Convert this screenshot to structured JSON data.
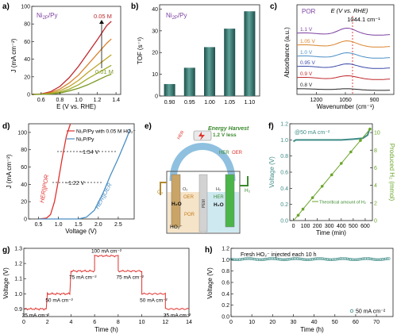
{
  "panels": {
    "a": {
      "label": "a)",
      "legend": "Ni",
      "legend_sub": "2P",
      "legend_suffix": "/Py",
      "ylabel": "J (mA cm⁻²)",
      "xlabel": "E (V vs. RHE)",
      "conc_top": "0.05 M",
      "conc_bottom": "0.01 M",
      "yticks": [
        "0",
        "20",
        "40",
        "60",
        "80",
        "100"
      ],
      "xticks": [
        "0.6",
        "0.8",
        "1.0",
        "1.2",
        "1.4"
      ]
    },
    "b": {
      "label": "b)",
      "legend": "Ni",
      "legend_sub": "2P",
      "legend_suffix": "/Py",
      "ylabel": "TOF (s⁻¹)",
      "yticks": [
        "0",
        "10",
        "20",
        "30",
        "40"
      ]
    },
    "c": {
      "label": "c)",
      "title": "POR",
      "ylabel": "Absorbance (a.u.)",
      "xlabel": "Wavenumber (cm⁻¹)",
      "header": "E (V vs. RHE)",
      "peak": "1044.1 cm⁻¹",
      "xticks": [
        "1200",
        "1050",
        "900"
      ]
    },
    "d": {
      "label": "d)",
      "ylabel": "J (mA cm⁻²)",
      "xlabel": "Voltage (V)",
      "legend1": "Ni₂P/Py with 0.05 M HO₂⁻",
      "legend2": "Ni₂P/Py",
      "gap_top": "~1.54 V",
      "gap_bottom": "~1.22 V",
      "red_label": "HER||POR",
      "blue_label": "HER||OER",
      "yticks": [
        "0",
        "20",
        "40",
        "60",
        "80",
        "100"
      ],
      "xticks": [
        "0.5",
        "1.0",
        "1.5",
        "2.0",
        "2.5"
      ]
    },
    "e": {
      "label": "e)",
      "energy": "Energy Harvest",
      "v_save": "1.2 V less",
      "her_por": "HER",
      "her_oer": "HER",
      "oer_label": "OER",
      "o2": "O₂",
      "h2": "H₂",
      "h2o_left": "H₂O",
      "h2o_right": "H₂O",
      "oer": "OER",
      "por": "POR",
      "ho2": "HO₂⁻",
      "pem": "PEM",
      "her": "HER",
      "o2_small": "O₂",
      "h2_small": "H₂"
    },
    "f": {
      "label": "f)",
      "annotation": "@50 mA cm⁻²",
      "ylabel_left": "Voltage (V)",
      "ylabel_right": "Produced H₂ (mmol)",
      "xlabel": "Time (min)",
      "legend": "Theoritical amount of H₂",
      "yticks_left": [
        "0.0",
        "0.2",
        "0.4",
        "0.6",
        "0.8",
        "1.0",
        "1.2"
      ],
      "yticks_right": [
        "0",
        "2",
        "4",
        "6",
        "8",
        "10"
      ],
      "xticks": [
        "0",
        "100",
        "200",
        "300",
        "400",
        "500",
        "600"
      ]
    },
    "g": {
      "label": "g)",
      "ylabel": "Voltage (V)",
      "xlabel": "Time (h)",
      "yticks": [
        "0.9",
        "1.0",
        "1.1",
        "1.2",
        "1.3"
      ],
      "xticks": [
        "0",
        "2",
        "4",
        "6",
        "8",
        "10",
        "12",
        "14"
      ]
    },
    "h": {
      "label": "h)",
      "annotation": "Fresh HO₂⁻ injected each 10 h",
      "ylabel": "Voltage (V)",
      "xlabel": "Time (h)",
      "legend": "50 mA cm⁻²",
      "yticks": [
        "0.0",
        "0.2",
        "0.4",
        "0.6",
        "0.8",
        "1.0",
        "1.2"
      ],
      "xticks": [
        "0",
        "10",
        "20",
        "30",
        "40",
        "50",
        "60",
        "70"
      ]
    }
  },
  "chart_data": [
    {
      "panel": "a",
      "type": "line",
      "title": "",
      "xlabel": "E (V vs. RHE)",
      "ylabel": "J (mA cm⁻²)",
      "xlim": [
        0.5,
        1.45
      ],
      "ylim": [
        0,
        100
      ],
      "series": [
        {
          "color": "#c0282d",
          "x": [
            0.5,
            0.6,
            0.7,
            0.8,
            0.9,
            1.0,
            1.1,
            1.2,
            1.3,
            1.35
          ],
          "y": [
            0,
            0.5,
            3,
            9,
            19,
            32,
            47,
            62,
            78,
            83
          ]
        },
        {
          "color": "#d9832b",
          "x": [
            0.5,
            0.6,
            0.7,
            0.8,
            0.9,
            1.0,
            1.1,
            1.2,
            1.3,
            1.35
          ],
          "y": [
            0,
            0.3,
            2,
            6,
            13,
            22,
            34,
            46,
            58,
            63
          ]
        },
        {
          "color": "#bfa52a",
          "x": [
            0.5,
            0.6,
            0.7,
            0.8,
            0.9,
            1.0,
            1.1,
            1.2,
            1.3,
            1.35
          ],
          "y": [
            0,
            0.2,
            1,
            4,
            9,
            16,
            25,
            33,
            41,
            45
          ]
        },
        {
          "color": "#a0ad2c",
          "x": [
            0.5,
            0.6,
            0.7,
            0.8,
            0.9,
            1.0,
            1.1,
            1.2,
            1.3,
            1.35
          ],
          "y": [
            0,
            0.1,
            0.6,
            2.5,
            6,
            11,
            18,
            24,
            30,
            33
          ]
        },
        {
          "color": "#7c9a27",
          "x": [
            0.5,
            0.6,
            0.7,
            0.8,
            0.9,
            1.0,
            1.1,
            1.2,
            1.3,
            1.35
          ],
          "y": [
            0,
            0.1,
            0.4,
            1.5,
            4,
            7,
            11,
            16,
            21,
            23
          ]
        }
      ]
    },
    {
      "panel": "b",
      "type": "bar",
      "categories": [
        "0.90",
        "0.95",
        "1.00",
        "1.05",
        "1.10"
      ],
      "values": [
        5.5,
        13,
        22.5,
        31,
        39
      ],
      "ylim": [
        0,
        42
      ],
      "ylabel": "TOF (s⁻¹)"
    },
    {
      "panel": "c",
      "type": "line",
      "xlim": [
        1300,
        800
      ],
      "series": [
        {
          "name": "1.1 V",
          "color": "#7b3fa0"
        },
        {
          "name": "1.05 V",
          "color": "#d9832b"
        },
        {
          "name": "1.0 V",
          "color": "#4b8fc4"
        },
        {
          "name": "0.95 V",
          "color": "#3a49a8"
        },
        {
          "name": "0.9 V",
          "color": "#c0282d"
        },
        {
          "name": "0.8 V",
          "color": "#222222"
        }
      ]
    },
    {
      "panel": "d",
      "type": "line",
      "xlim": [
        0.25,
        2.9
      ],
      "ylim": [
        0,
        110
      ],
      "series": [
        {
          "color": "#e0322e",
          "x": [
            0.5,
            0.7,
            0.8,
            0.9,
            1.0,
            1.1,
            1.2,
            1.3
          ],
          "y": [
            0,
            1,
            5,
            20,
            45,
            72,
            96,
            110
          ]
        },
        {
          "color": "#4b8fc4",
          "x": [
            0.5,
            1.5,
            1.7,
            1.9,
            2.1,
            2.3,
            2.5,
            2.7,
            2.8
          ],
          "y": [
            0,
            0,
            2,
            10,
            28,
            50,
            70,
            92,
            104
          ]
        }
      ]
    },
    {
      "panel": "f",
      "type": "line",
      "xlim": [
        -30,
        660
      ],
      "ylim": [
        0,
        1.2
      ],
      "y2lim": [
        0,
        11
      ],
      "series": [
        {
          "color": "#3e8c86",
          "axis": "left",
          "x": [
            0,
            20,
            100,
            200,
            300,
            400,
            500,
            580,
            620,
            640
          ],
          "y": [
            0.98,
            1.0,
            1.0,
            1.0,
            1.0,
            1.0,
            1.01,
            1.02,
            1.06,
            1.15
          ]
        },
        {
          "color": "#6aa52a",
          "axis": "right",
          "x": [
            0,
            40,
            80,
            160,
            240,
            320,
            400,
            480,
            560,
            640
          ],
          "y": [
            0,
            0.6,
            1.3,
            2.6,
            3.9,
            5.2,
            6.5,
            7.8,
            9.1,
            10.4
          ]
        }
      ]
    },
    {
      "panel": "g",
      "type": "line",
      "xlim": [
        0,
        14
      ],
      "ylim": [
        0.85,
        1.3
      ],
      "steps": [
        {
          "x0": 0,
          "x1": 2,
          "y": 0.9,
          "label": "25 mA cm⁻²"
        },
        {
          "x0": 2,
          "x1": 4,
          "y": 1.0,
          "label": "50 mA cm⁻²"
        },
        {
          "x0": 4,
          "x1": 6,
          "y": 1.15,
          "label": "75 mA cm⁻²"
        },
        {
          "x0": 6,
          "x1": 8,
          "y": 1.25,
          "label": "100 mA cm⁻²"
        },
        {
          "x0": 8,
          "x1": 10,
          "y": 1.15,
          "label": "75 mA cm⁻²"
        },
        {
          "x0": 10,
          "x1": 12,
          "y": 1.0,
          "label": "50 mA cm⁻²"
        },
        {
          "x0": 12,
          "x1": 14,
          "y": 0.9,
          "label": "25 mA cm⁻²"
        }
      ]
    },
    {
      "panel": "h",
      "type": "scatter",
      "xlim": [
        0,
        78
      ],
      "ylim": [
        0,
        1.2
      ],
      "series": [
        {
          "name": "50 mA cm⁻²",
          "color": "#3e8c86",
          "x0": 0,
          "x1": 76,
          "y": 1.01
        }
      ]
    }
  ]
}
